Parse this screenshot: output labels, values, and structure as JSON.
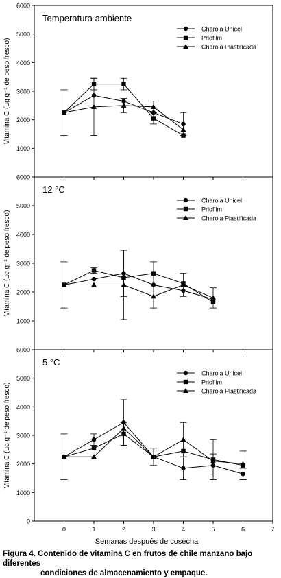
{
  "chart_data": [
    {
      "type": "line",
      "title": "Temperatura ambiente",
      "ylabel": "Vitamina C (µg g⁻¹ de peso fresco)",
      "xlabel": "",
      "ylim": [
        0,
        6000
      ],
      "xlim": [
        -1,
        7
      ],
      "yticks": [
        "1000",
        "2000",
        "3000",
        "4000",
        "5000",
        "6000"
      ],
      "xticks": [],
      "series": [
        {
          "name": "Charola Unicel",
          "marker": "circle",
          "x": [
            0,
            1,
            2,
            3,
            4
          ],
          "y": [
            2250,
            2850,
            2650,
            2250,
            1850
          ],
          "err": [
            800,
            0,
            0,
            0,
            400
          ]
        },
        {
          "name": "Priofilm",
          "marker": "square",
          "x": [
            0,
            1,
            2,
            3,
            4
          ],
          "y": [
            2250,
            3250,
            3250,
            2050,
            1450
          ],
          "err": [
            0,
            200,
            200,
            200,
            0
          ]
        },
        {
          "name": "Charola Plastificada",
          "marker": "triangle",
          "x": [
            0,
            1,
            2,
            3,
            4
          ],
          "y": [
            2250,
            2450,
            2500,
            2450,
            1650
          ],
          "err": [
            0,
            1000,
            250,
            200,
            0
          ]
        }
      ]
    },
    {
      "type": "line",
      "title": "12 °C",
      "ylabel": "Vitamina C (µg g⁻¹ de peso fresco)",
      "xlabel": "",
      "ylim": [
        0,
        6000
      ],
      "xlim": [
        -1,
        7
      ],
      "yticks": [
        "1000",
        "2000",
        "3000",
        "4000",
        "5000",
        "6000"
      ],
      "xticks": [],
      "series": [
        {
          "name": "Charola Unicel",
          "marker": "circle",
          "x": [
            0,
            1,
            2,
            3,
            4,
            5
          ],
          "y": [
            2250,
            2450,
            2650,
            2250,
            2050,
            1750
          ],
          "err": [
            800,
            0,
            800,
            0,
            0,
            0
          ]
        },
        {
          "name": "Priofilm",
          "marker": "square",
          "x": [
            0,
            1,
            2,
            3,
            4,
            5
          ],
          "y": [
            2250,
            2750,
            2500,
            2650,
            2300,
            1650
          ],
          "err": [
            0,
            100,
            0,
            400,
            0,
            0
          ]
        },
        {
          "name": "Charola Plastificada",
          "marker": "triangle",
          "x": [
            0,
            1,
            2,
            3,
            4,
            5
          ],
          "y": [
            2250,
            2250,
            2250,
            1850,
            2250,
            1800
          ],
          "err": [
            0,
            0,
            1200,
            400,
            400,
            350
          ]
        }
      ]
    },
    {
      "type": "line",
      "title": "5 °C",
      "ylabel": "Vitamina C (µg g⁻¹ de peso fresco)",
      "xlabel": "Semanas después de cosecha",
      "ylim": [
        0,
        6000
      ],
      "xlim": [
        -1,
        7
      ],
      "yticks": [
        "0",
        "1000",
        "2000",
        "3000",
        "4000",
        "5000",
        "6000"
      ],
      "xticks": [
        "0",
        "1",
        "2",
        "3",
        "4",
        "5",
        "6",
        "7"
      ],
      "series": [
        {
          "name": "Charola Unicel",
          "marker": "circle",
          "x": [
            0,
            1,
            2,
            3,
            4,
            5,
            6
          ],
          "y": [
            2250,
            2850,
            3450,
            2250,
            1850,
            1950,
            1650
          ],
          "err": [
            800,
            200,
            800,
            0,
            400,
            400,
            200
          ]
        },
        {
          "name": "Priofilm",
          "marker": "square",
          "x": [
            0,
            1,
            2,
            3,
            4,
            5,
            6
          ],
          "y": [
            2250,
            2550,
            3050,
            2250,
            2450,
            2150,
            1950
          ],
          "err": [
            0,
            0,
            400,
            300,
            0,
            700,
            500
          ]
        },
        {
          "name": "Charola Plastificada",
          "marker": "triangle",
          "x": [
            0,
            1,
            2,
            3,
            4,
            5,
            6
          ],
          "y": [
            2250,
            2250,
            3250,
            2250,
            2850,
            2100,
            2000
          ],
          "err": [
            0,
            0,
            0,
            0,
            600,
            0,
            0
          ]
        }
      ]
    }
  ],
  "caption": {
    "line1": "Figura 4. Contenido de vitamina C en frutos de chile manzano bajo diferentes",
    "line2": "condiciones de almacenamiento y empaque."
  },
  "colors": {
    "ink": "#000000",
    "background": "#ffffff"
  }
}
